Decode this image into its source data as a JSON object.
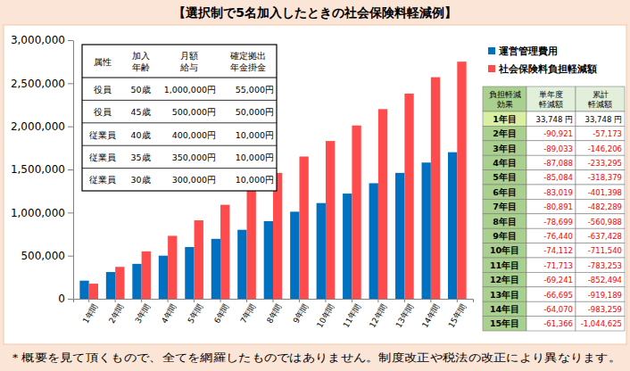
{
  "chart_data": {
    "type": "bar",
    "title": "【選択制で5名加入したときの社会保険料軽減例】",
    "categories": [
      "1年間",
      "2年間",
      "3年間",
      "4年間",
      "5年間",
      "6年間",
      "7年間",
      "8年間",
      "9年間",
      "10年間",
      "11年間",
      "12年間",
      "13年間",
      "14年間",
      "15年間"
    ],
    "series": [
      {
        "name": "運営管理費用",
        "color": "#0070c0",
        "values": [
          210000,
          310000,
          405000,
          500000,
          600000,
          695000,
          800000,
          900000,
          1010000,
          1110000,
          1220000,
          1340000,
          1460000,
          1580000,
          1700000
        ]
      },
      {
        "name": "社会保険料負担軽減額",
        "color": "#ff4b4b",
        "values": [
          175000,
          370000,
          550000,
          730000,
          910000,
          1090000,
          1280000,
          1460000,
          1650000,
          1830000,
          2010000,
          2200000,
          2380000,
          2570000,
          2750000
        ]
      }
    ],
    "ylim": [
      0,
      3000000
    ],
    "yticks": [
      0,
      {
        "value": 500000,
        "label": "500,000"
      },
      {
        "value": 1000000,
        "label": "1,000,000"
      },
      {
        "value": 1500000,
        "label": "1,500,000"
      },
      {
        "value": 2000000,
        "label": "2,000,000"
      },
      {
        "value": 2500000,
        "label": "2,500,000"
      },
      {
        "value": 3000000,
        "label": "3,000,000"
      }
    ],
    "grid": false,
    "legend": "top-right"
  },
  "member_table": {
    "header": [
      [
        "属性"
      ],
      [
        "加入",
        "年齢"
      ],
      [
        "月額",
        "給与"
      ],
      [
        "確定拠出",
        "年金掛金"
      ]
    ],
    "rows": [
      [
        "役員",
        "50歳",
        "1,000,000円",
        "55,000円"
      ],
      [
        "役員",
        "45歳",
        "500,000円",
        "50,000円"
      ],
      [
        "従業員",
        "40歳",
        "400,000円",
        "10,000円"
      ],
      [
        "従業員",
        "35歳",
        "350,000円",
        "10,000円"
      ],
      [
        "従業員",
        "30歳",
        "300,000円",
        "10,000円"
      ]
    ]
  },
  "reduction_table": {
    "header": [
      [
        "負担軽減",
        "効果"
      ],
      [
        "単年度",
        "軽減額"
      ],
      [
        "累計",
        "軽減額"
      ]
    ],
    "rows": [
      [
        "1年目",
        "33,748 円",
        "33,748 円"
      ],
      [
        "2年目",
        "-90,921",
        "-57,173"
      ],
      [
        "3年目",
        "-89,033",
        "-146,206"
      ],
      [
        "4年目",
        "-87,088",
        "-233,295"
      ],
      [
        "5年目",
        "-85,084",
        "-318,379"
      ],
      [
        "6年目",
        "-83,019",
        "-401,398"
      ],
      [
        "7年目",
        "-80,891",
        "-482,289"
      ],
      [
        "8年目",
        "-78,699",
        "-560,988"
      ],
      [
        "9年目",
        "-76,440",
        "-637,428"
      ],
      [
        "10年目",
        "-74,112",
        "-711,540"
      ],
      [
        "11年目",
        "-71,713",
        "-783,253"
      ],
      [
        "12年目",
        "-69,241",
        "-852,494"
      ],
      [
        "13年目",
        "-66,695",
        "-919,189"
      ],
      [
        "14年目",
        "-64,070",
        "-983,259"
      ],
      [
        "15年目",
        "-61,366",
        "-1,044,625"
      ]
    ]
  },
  "footnote": "＊概要を見て頂くもので、全てを網羅したものではありません。制度改正や税法の改正により異なります。"
}
